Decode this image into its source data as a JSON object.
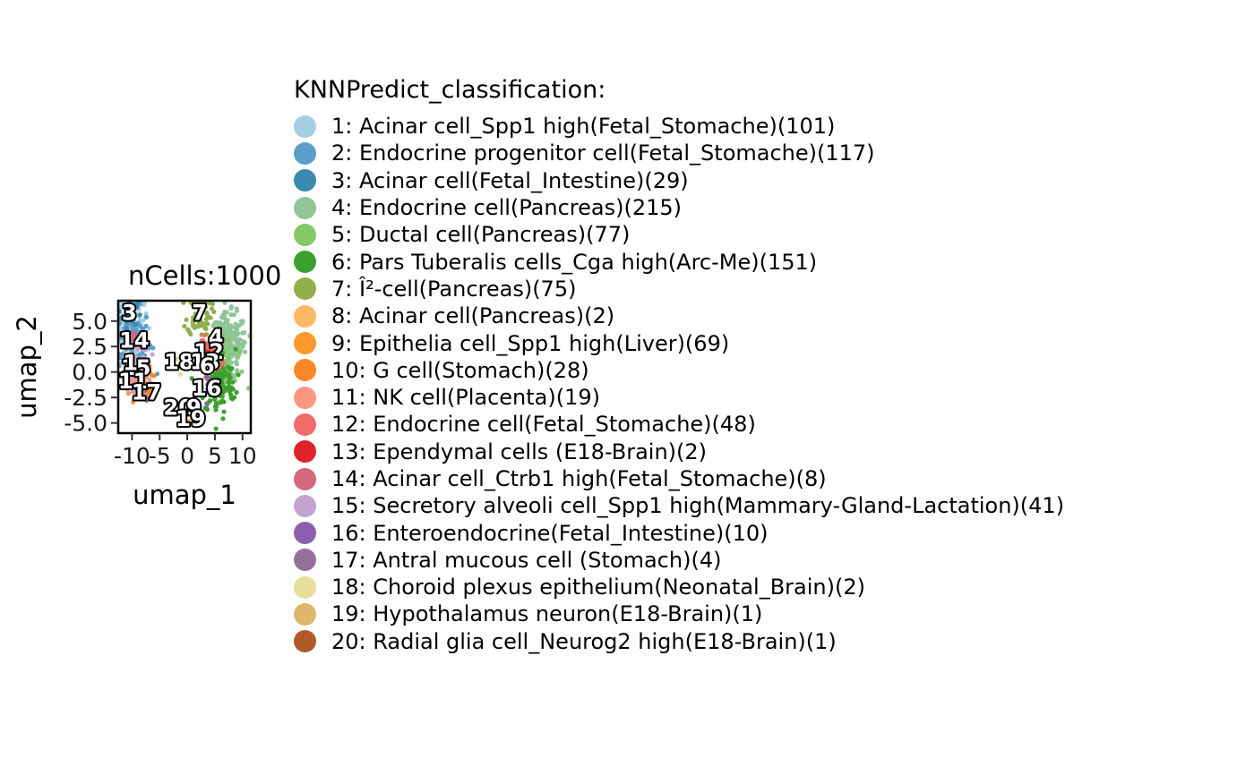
{
  "chart_data": {
    "type": "scatter",
    "title": "nCells:1000",
    "xlabel": "umap_1",
    "ylabel": "umap_2",
    "xlim": [
      -12.5,
      11.5
    ],
    "ylim": [
      -6.0,
      7.0
    ],
    "x_ticks": [
      -10,
      -5,
      0,
      5,
      10
    ],
    "x_tick_labels": [
      "-10",
      "-5",
      "0",
      "5",
      "10"
    ],
    "y_ticks": [
      5.0,
      2.5,
      0.0,
      -2.5,
      -5.0
    ],
    "y_tick_labels": [
      "5.0",
      "2.5",
      "0.0",
      "-2.5",
      "-5.0"
    ],
    "legend_title": "KNNPredict_classification:",
    "legend_position": "right",
    "grid": false,
    "clusters": [
      {
        "id": "1",
        "label": "1: Acinar cell_Spp1 high(Fetal_Stomache)(101)",
        "color": "#A6CEE3",
        "count": 101,
        "center": [
          -10.3,
          5.2
        ]
      },
      {
        "id": "2",
        "label": "2: Endocrine progenitor cell(Fetal_Stomache)(117)",
        "color": "#5A9EC9",
        "count": 117,
        "center": [
          -9.8,
          3.0
        ]
      },
      {
        "id": "3",
        "label": "3: Acinar cell(Fetal_Intestine)(29)",
        "color": "#3A89B0",
        "count": 29,
        "center": [
          -10.5,
          5.8
        ]
      },
      {
        "id": "4",
        "label": "4: Endocrine cell(Pancreas)(215)",
        "color": "#8FC597",
        "count": 215,
        "center": [
          7.5,
          2.5
        ]
      },
      {
        "id": "5",
        "label": "5: Ductal cell(Pancreas)(77)",
        "color": "#86C864",
        "count": 77,
        "center": [
          6.0,
          1.0
        ]
      },
      {
        "id": "6",
        "label": "6: Pars Tuberalis cells_Cga high(Arc-Me)(151)",
        "color": "#3CA02E",
        "count": 151,
        "center": [
          5.5,
          -1.0
        ]
      },
      {
        "id": "7",
        "label": "7: Î²-cell(Pancreas)(75)",
        "color": "#91AF4A",
        "count": 75,
        "center": [
          2.2,
          5.8
        ]
      },
      {
        "id": "8",
        "label": "8: Acinar cell(Pancreas)(2)",
        "color": "#FDB863",
        "count": 2,
        "center": [
          -9.5,
          -1.0
        ]
      },
      {
        "id": "9",
        "label": "9: Epithelia cell_Spp1 high(Liver)(69)",
        "color": "#FE982C",
        "count": 69,
        "center": [
          -9.3,
          -0.5
        ]
      },
      {
        "id": "10",
        "label": "10: G cell(Stomach)(28)",
        "color": "#FE8725",
        "count": 28,
        "center": [
          -7.0,
          -1.8
        ]
      },
      {
        "id": "11",
        "label": "11: NK cell(Placenta)(19)",
        "color": "#FA9780",
        "count": 19,
        "center": [
          -9.8,
          -0.9
        ]
      },
      {
        "id": "12",
        "label": "12: Endocrine cell(Fetal_Stomache)(48)",
        "color": "#EF6B6A",
        "count": 48,
        "center": [
          4.0,
          1.9
        ]
      },
      {
        "id": "13",
        "label": "13: Ependymal cells (E18-Brain)(2)",
        "color": "#E0232B",
        "count": 2,
        "center": [
          3.5,
          1.0
        ]
      },
      {
        "id": "14",
        "label": "14: Acinar cell_Ctrb1 high(Fetal_Stomache)(8)",
        "color": "#D5687C",
        "count": 8,
        "center": [
          -9.7,
          3.1
        ]
      },
      {
        "id": "15",
        "label": "15: Secretory alveoli cell_Spp1 high(Mammary-Gland-Lactation)(41)",
        "color": "#C2A4CF",
        "count": 41,
        "center": [
          -9.2,
          0.4
        ]
      },
      {
        "id": "16",
        "label": "16: Enteroendocrine(Fetal_Intestine)(10)",
        "color": "#8D60AE",
        "count": 10,
        "center": [
          3.5,
          -1.5
        ]
      },
      {
        "id": "17",
        "label": "17: Antral mucous cell (Stomach)(4)",
        "color": "#957099",
        "count": 4,
        "center": [
          -7.5,
          -2.2
        ]
      },
      {
        "id": "18",
        "label": "18: Choroid plexus epithelium(Neonatal_Brain)(2)",
        "color": "#E6DE9A",
        "count": 2,
        "center": [
          -1.5,
          1.2
        ]
      },
      {
        "id": "19",
        "label": "19: Hypothalamus neuron(E18-Brain)(1)",
        "color": "#DDB76A",
        "count": 1,
        "center": [
          0.5,
          -4.5
        ]
      },
      {
        "id": "20",
        "label": "20: Radial glia cell_Neurog2 high(E18-Brain)(1)",
        "color": "#B15928",
        "count": 1,
        "center": [
          -1.5,
          -3.5
        ]
      }
    ],
    "cluster_label_positions": [
      {
        "text": "3",
        "x": -10.5,
        "y": 5.8
      },
      {
        "text": "7",
        "x": 2.2,
        "y": 5.8
      },
      {
        "text": "14",
        "x": -9.6,
        "y": 3.1
      },
      {
        "text": "4",
        "x": 5.2,
        "y": 3.4
      },
      {
        "text": "12",
        "x": 3.9,
        "y": 2.0
      },
      {
        "text": "15",
        "x": -9.3,
        "y": 0.4
      },
      {
        "text": "18",
        "x": -1.5,
        "y": 1.0
      },
      {
        "text": "1",
        "x": -10.3,
        "y": 0.9
      },
      {
        "text": "13",
        "x": 3.2,
        "y": 1.0
      },
      {
        "text": "6",
        "x": 3.6,
        "y": 0.6
      },
      {
        "text": "11",
        "x": -9.8,
        "y": -0.9
      },
      {
        "text": "17",
        "x": -7.4,
        "y": -2.0
      },
      {
        "text": "16",
        "x": 3.5,
        "y": -1.6
      },
      {
        "text": "20",
        "x": -1.6,
        "y": -3.5
      },
      {
        "text": "9",
        "x": 1.2,
        "y": -3.5
      },
      {
        "text": "19",
        "x": 0.6,
        "y": -4.6
      }
    ]
  }
}
